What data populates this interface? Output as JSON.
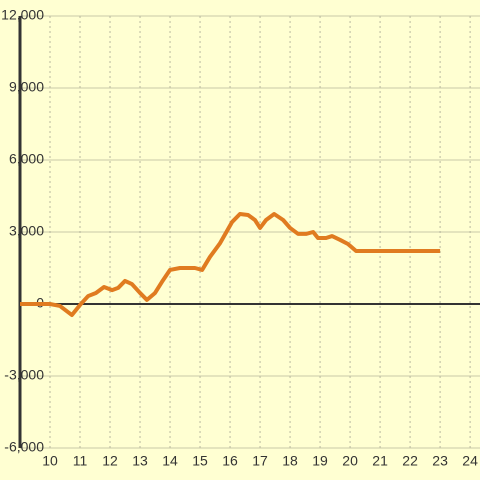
{
  "chart_data": {
    "type": "line",
    "x": [
      9,
      10,
      10.33,
      10.73,
      11,
      11.27,
      11.53,
      11.8,
      12.07,
      12.27,
      12.5,
      12.73,
      13,
      13.23,
      13.5,
      13.73,
      14,
      14.33,
      14.83,
      15.07,
      15.33,
      15.67,
      16.07,
      16.33,
      16.6,
      16.83,
      17,
      17.2,
      17.47,
      17.77,
      18,
      18.27,
      18.53,
      18.77,
      18.93,
      19.2,
      19.4,
      19.67,
      19.93,
      20.2,
      23
    ],
    "series": [
      {
        "color": "#e07b20",
        "values": [
          0,
          0,
          -80,
          -460,
          -40,
          330,
          460,
          710,
          580,
          670,
          960,
          830,
          460,
          170,
          460,
          920,
          1420,
          1500,
          1500,
          1420,
          1960,
          2540,
          3420,
          3750,
          3710,
          3500,
          3170,
          3500,
          3750,
          3500,
          3170,
          2920,
          2920,
          3000,
          2750,
          2750,
          2830,
          2670,
          2500,
          2210,
          2210
        ]
      }
    ],
    "xlim": [
      9,
      24.33
    ],
    "xticks": [
      10,
      11,
      12,
      13,
      14,
      15,
      16,
      17,
      18,
      19,
      20,
      21,
      22,
      23,
      24
    ],
    "ylim": [
      -6000,
      12000
    ],
    "yticks": [
      {
        "value": -6000,
        "label": "-6,000"
      },
      {
        "value": -3000,
        "label": "-3,000"
      },
      0,
      {
        "value": 3000,
        "label": "3,000"
      },
      {
        "value": 6000,
        "label": "6,000"
      },
      {
        "value": 9000,
        "label": "9,000"
      },
      {
        "value": 12000,
        "label": "12,000"
      }
    ],
    "grid": true
  }
}
